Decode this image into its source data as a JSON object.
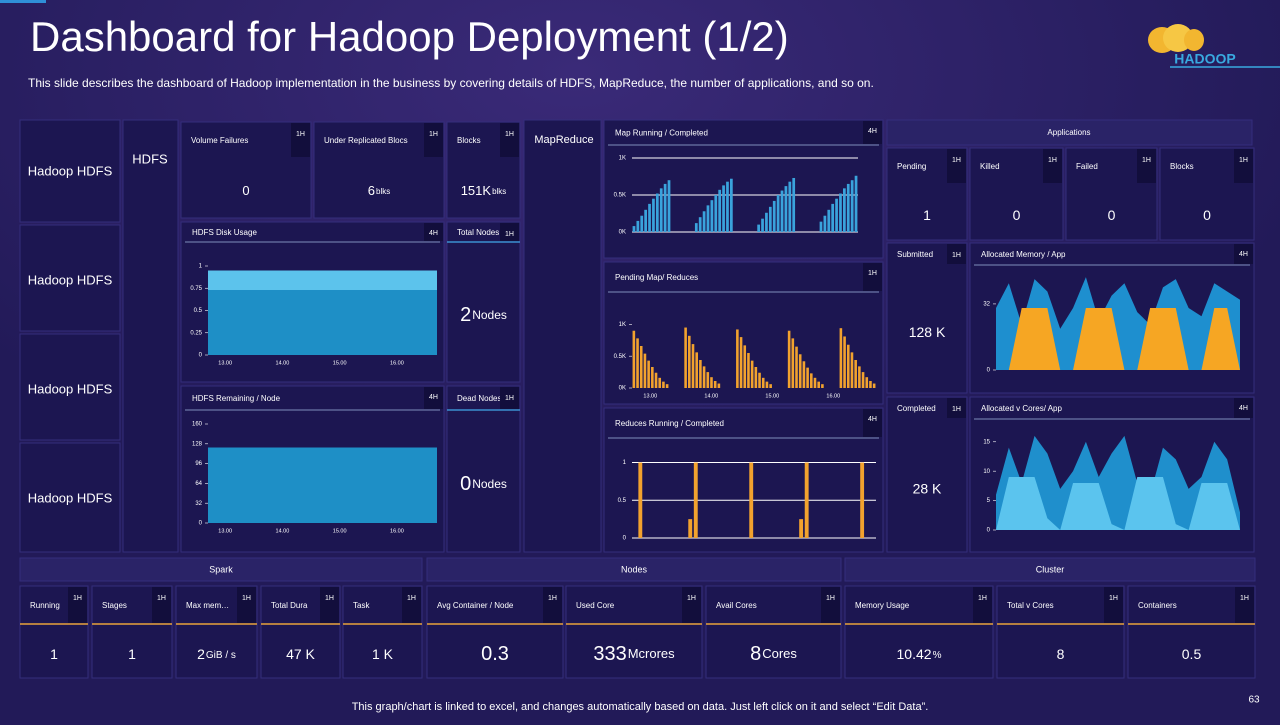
{
  "header": {
    "title": "Dashboard for Hadoop Deployment (1/2)",
    "subtitle": "This slide describes the dashboard of Hadoop implementation in the business by covering details of HDFS, MapReduce, the number of applications, and so on.",
    "logo": "HADOOP"
  },
  "sidebar": {
    "items": [
      "Hadoop HDFS",
      "Hadoop HDFS",
      "Hadoop HDFS",
      "Hadoop HDFS"
    ],
    "hdfs": "HDFS",
    "mapreduce": "MapReduce"
  },
  "applications": "Applications",
  "tiles": [
    {
      "label": "Volume Failures",
      "badge": "1H",
      "value": "0"
    },
    {
      "label": "Under Replicated Blocs",
      "badge": "1H",
      "value": "6",
      "unit": "blks"
    },
    {
      "label": "Blocks",
      "badge": "1H",
      "value": "151K",
      "unit": "blks"
    },
    {
      "label": "Total Nodes",
      "badge": "1H",
      "value": "2",
      "unit": "Nodes"
    },
    {
      "label": "Dead Nodes",
      "badge": "1H",
      "value": "0",
      "unit": "Nodes"
    },
    {
      "label": "Pending",
      "badge": "1H",
      "value": "1"
    },
    {
      "label": "Killed",
      "badge": "1H",
      "value": "0"
    },
    {
      "label": "Failed",
      "badge": "1H",
      "value": "0"
    },
    {
      "label": "Blocks",
      "badge": "1H",
      "value": "0"
    },
    {
      "label": "Submitted",
      "badge": "1H",
      "value": "128 K"
    },
    {
      "label": "Completed",
      "badge": "1H",
      "value": "28 K"
    }
  ],
  "charts": [
    {
      "type": "bar",
      "title": "Map Running / Completed",
      "badge": "4H",
      "color": "#3aa3dc",
      "grid": true,
      "ylim": [
        0,
        1000
      ],
      "yticks": [
        {
          "value": 0,
          "label": "0K"
        },
        {
          "value": 500,
          "label": "0.5K"
        },
        {
          "value": 1000,
          "label": "1K"
        }
      ],
      "values": [
        80,
        150,
        220,
        300,
        380,
        450,
        520,
        590,
        650,
        700,
        null,
        null,
        null,
        null,
        null,
        null,
        120,
        200,
        280,
        360,
        430,
        500,
        570,
        630,
        680,
        720,
        null,
        null,
        null,
        null,
        null,
        null,
        100,
        180,
        260,
        340,
        420,
        500,
        560,
        620,
        680,
        730,
        null,
        null,
        null,
        null,
        null,
        null,
        140,
        220,
        300,
        380,
        450,
        520,
        590,
        650,
        700,
        760
      ]
    },
    {
      "type": "bar",
      "title": "Pending Map/ Reduces",
      "badge": "1H",
      "color": "#f2a22e",
      "grid": false,
      "ylim": [
        0,
        1100
      ],
      "yticks": [
        {
          "value": 0,
          "label": "0K"
        },
        {
          "value": 500,
          "label": "0.5K"
        },
        {
          "value": 1000,
          "label": "1K"
        }
      ],
      "xlabels": [
        "13.00",
        "14.00",
        "15.00",
        "16.00"
      ],
      "values": [
        900,
        780,
        660,
        540,
        430,
        330,
        240,
        160,
        100,
        60,
        null,
        null,
        null,
        null,
        950,
        820,
        690,
        560,
        440,
        340,
        250,
        170,
        110,
        70,
        null,
        null,
        null,
        null,
        920,
        800,
        670,
        550,
        430,
        330,
        240,
        160,
        100,
        60,
        null,
        null,
        null,
        null,
        900,
        780,
        650,
        530,
        420,
        320,
        230,
        160,
        100,
        60,
        null,
        null,
        null,
        null,
        940,
        810,
        680,
        560,
        440,
        340,
        250,
        170,
        110,
        70
      ]
    },
    {
      "type": "bar",
      "title": "Reduces Running / Completed",
      "badge": "4H",
      "color": "#f2a22e",
      "grid": true,
      "ylim": [
        0,
        1.1
      ],
      "yticks": [
        0,
        0.5,
        1
      ],
      "values": [
        null,
        1,
        null,
        null,
        null,
        null,
        null,
        null,
        null,
        null,
        0.25,
        1,
        null,
        null,
        null,
        null,
        null,
        null,
        null,
        null,
        null,
        1,
        null,
        null,
        null,
        null,
        null,
        null,
        null,
        null,
        0.25,
        1,
        null,
        null,
        null,
        null,
        null,
        null,
        null,
        null,
        null,
        1,
        null,
        null
      ]
    },
    {
      "type": "area",
      "title": "HDFS Disk Usage",
      "badge": "4H",
      "grid": false,
      "ylim": [
        0,
        1
      ],
      "yticks": [
        0,
        0.25,
        0.5,
        0.75,
        1
      ],
      "xlabels": [
        "13.00",
        "14.00",
        "15.00",
        "16.00"
      ],
      "series": [
        {
          "color": "#5cc3ec",
          "values": [
            0.95,
            0.95
          ]
        },
        {
          "color": "#1e8fc6",
          "values": [
            0.73,
            0.73
          ]
        }
      ]
    },
    {
      "type": "area",
      "title": "HDFS Remaining / Node",
      "badge": "4H",
      "grid": false,
      "ylim": [
        0,
        160
      ],
      "yticks": [
        0,
        32,
        64,
        96,
        128,
        160
      ],
      "xlabels": [
        "13.00",
        "14.00",
        "15.00",
        "16.00"
      ],
      "series": [
        {
          "color": "#1e8fc6",
          "values": [
            122,
            122
          ]
        }
      ]
    },
    {
      "type": "area",
      "title": "Allocated Memory / App",
      "badge": "4H",
      "grid": false,
      "ylim": [
        0,
        46
      ],
      "yticks": [
        0,
        32
      ],
      "series": [
        {
          "color": "#1e8fcf",
          "values": [
            30,
            42,
            22,
            44,
            38,
            20,
            30,
            45,
            24,
            36,
            42,
            28,
            22,
            40,
            44,
            30,
            26,
            42,
            38,
            34
          ]
        },
        {
          "color": "#f6a623",
          "values": [
            0,
            0,
            30,
            30,
            30,
            0,
            0,
            30,
            30,
            30,
            0,
            0,
            30,
            30,
            30,
            0,
            0,
            30,
            30,
            0
          ]
        }
      ]
    },
    {
      "type": "area",
      "title": "Allocated v Cores/ App",
      "badge": "4H",
      "grid": false,
      "ylim": [
        0,
        17
      ],
      "yticks": [
        0,
        5,
        10,
        15
      ],
      "series": [
        {
          "color": "#1f8fcc",
          "values": [
            6,
            14,
            8,
            16,
            13,
            7,
            10,
            15,
            9,
            13,
            16,
            8,
            6,
            14,
            12,
            7,
            9,
            15,
            12,
            3
          ]
        },
        {
          "color": "#5bc4ee",
          "values": [
            0,
            9,
            9,
            9,
            2,
            0,
            8,
            8,
            8,
            1,
            0,
            9,
            9,
            9,
            1,
            0,
            8,
            8,
            8,
            0
          ]
        }
      ]
    }
  ],
  "bottom": {
    "sections": [
      {
        "title": "Spark",
        "tiles": [
          {
            "label": "Running",
            "badge": "1H",
            "value": "1"
          },
          {
            "label": "Stages",
            "badge": "1H",
            "value": "1"
          },
          {
            "label": "Max mem…",
            "badge": "1H",
            "value": "2",
            "unit": "GiB / s"
          },
          {
            "label": "Total Dura",
            "badge": "1H",
            "value": "47 K"
          },
          {
            "label": "Task",
            "badge": "1H",
            "value": "1 K"
          }
        ]
      },
      {
        "title": "Nodes",
        "tiles": [
          {
            "label": "Avg Container / Node",
            "badge": "1H",
            "value": "0.3"
          },
          {
            "label": "Used Core",
            "badge": "1H",
            "value": "333",
            "unit": "Mcrores"
          },
          {
            "label": "Avail Cores",
            "badge": "1H",
            "value": "8",
            "unit": "Cores"
          }
        ]
      },
      {
        "title": "Cluster",
        "tiles": [
          {
            "label": "Memory Usage",
            "badge": "1H",
            "value": "10.42",
            "unit": "%"
          },
          {
            "label": "Total v Cores",
            "badge": "1H",
            "value": "8"
          },
          {
            "label": "Containers",
            "badge": "1H",
            "value": "0.5"
          }
        ]
      }
    ]
  },
  "footer": {
    "note": "This graph/chart is linked to excel, and changes automatically based on data. Just left click on it and select “Edit Data”.",
    "page": "63"
  }
}
